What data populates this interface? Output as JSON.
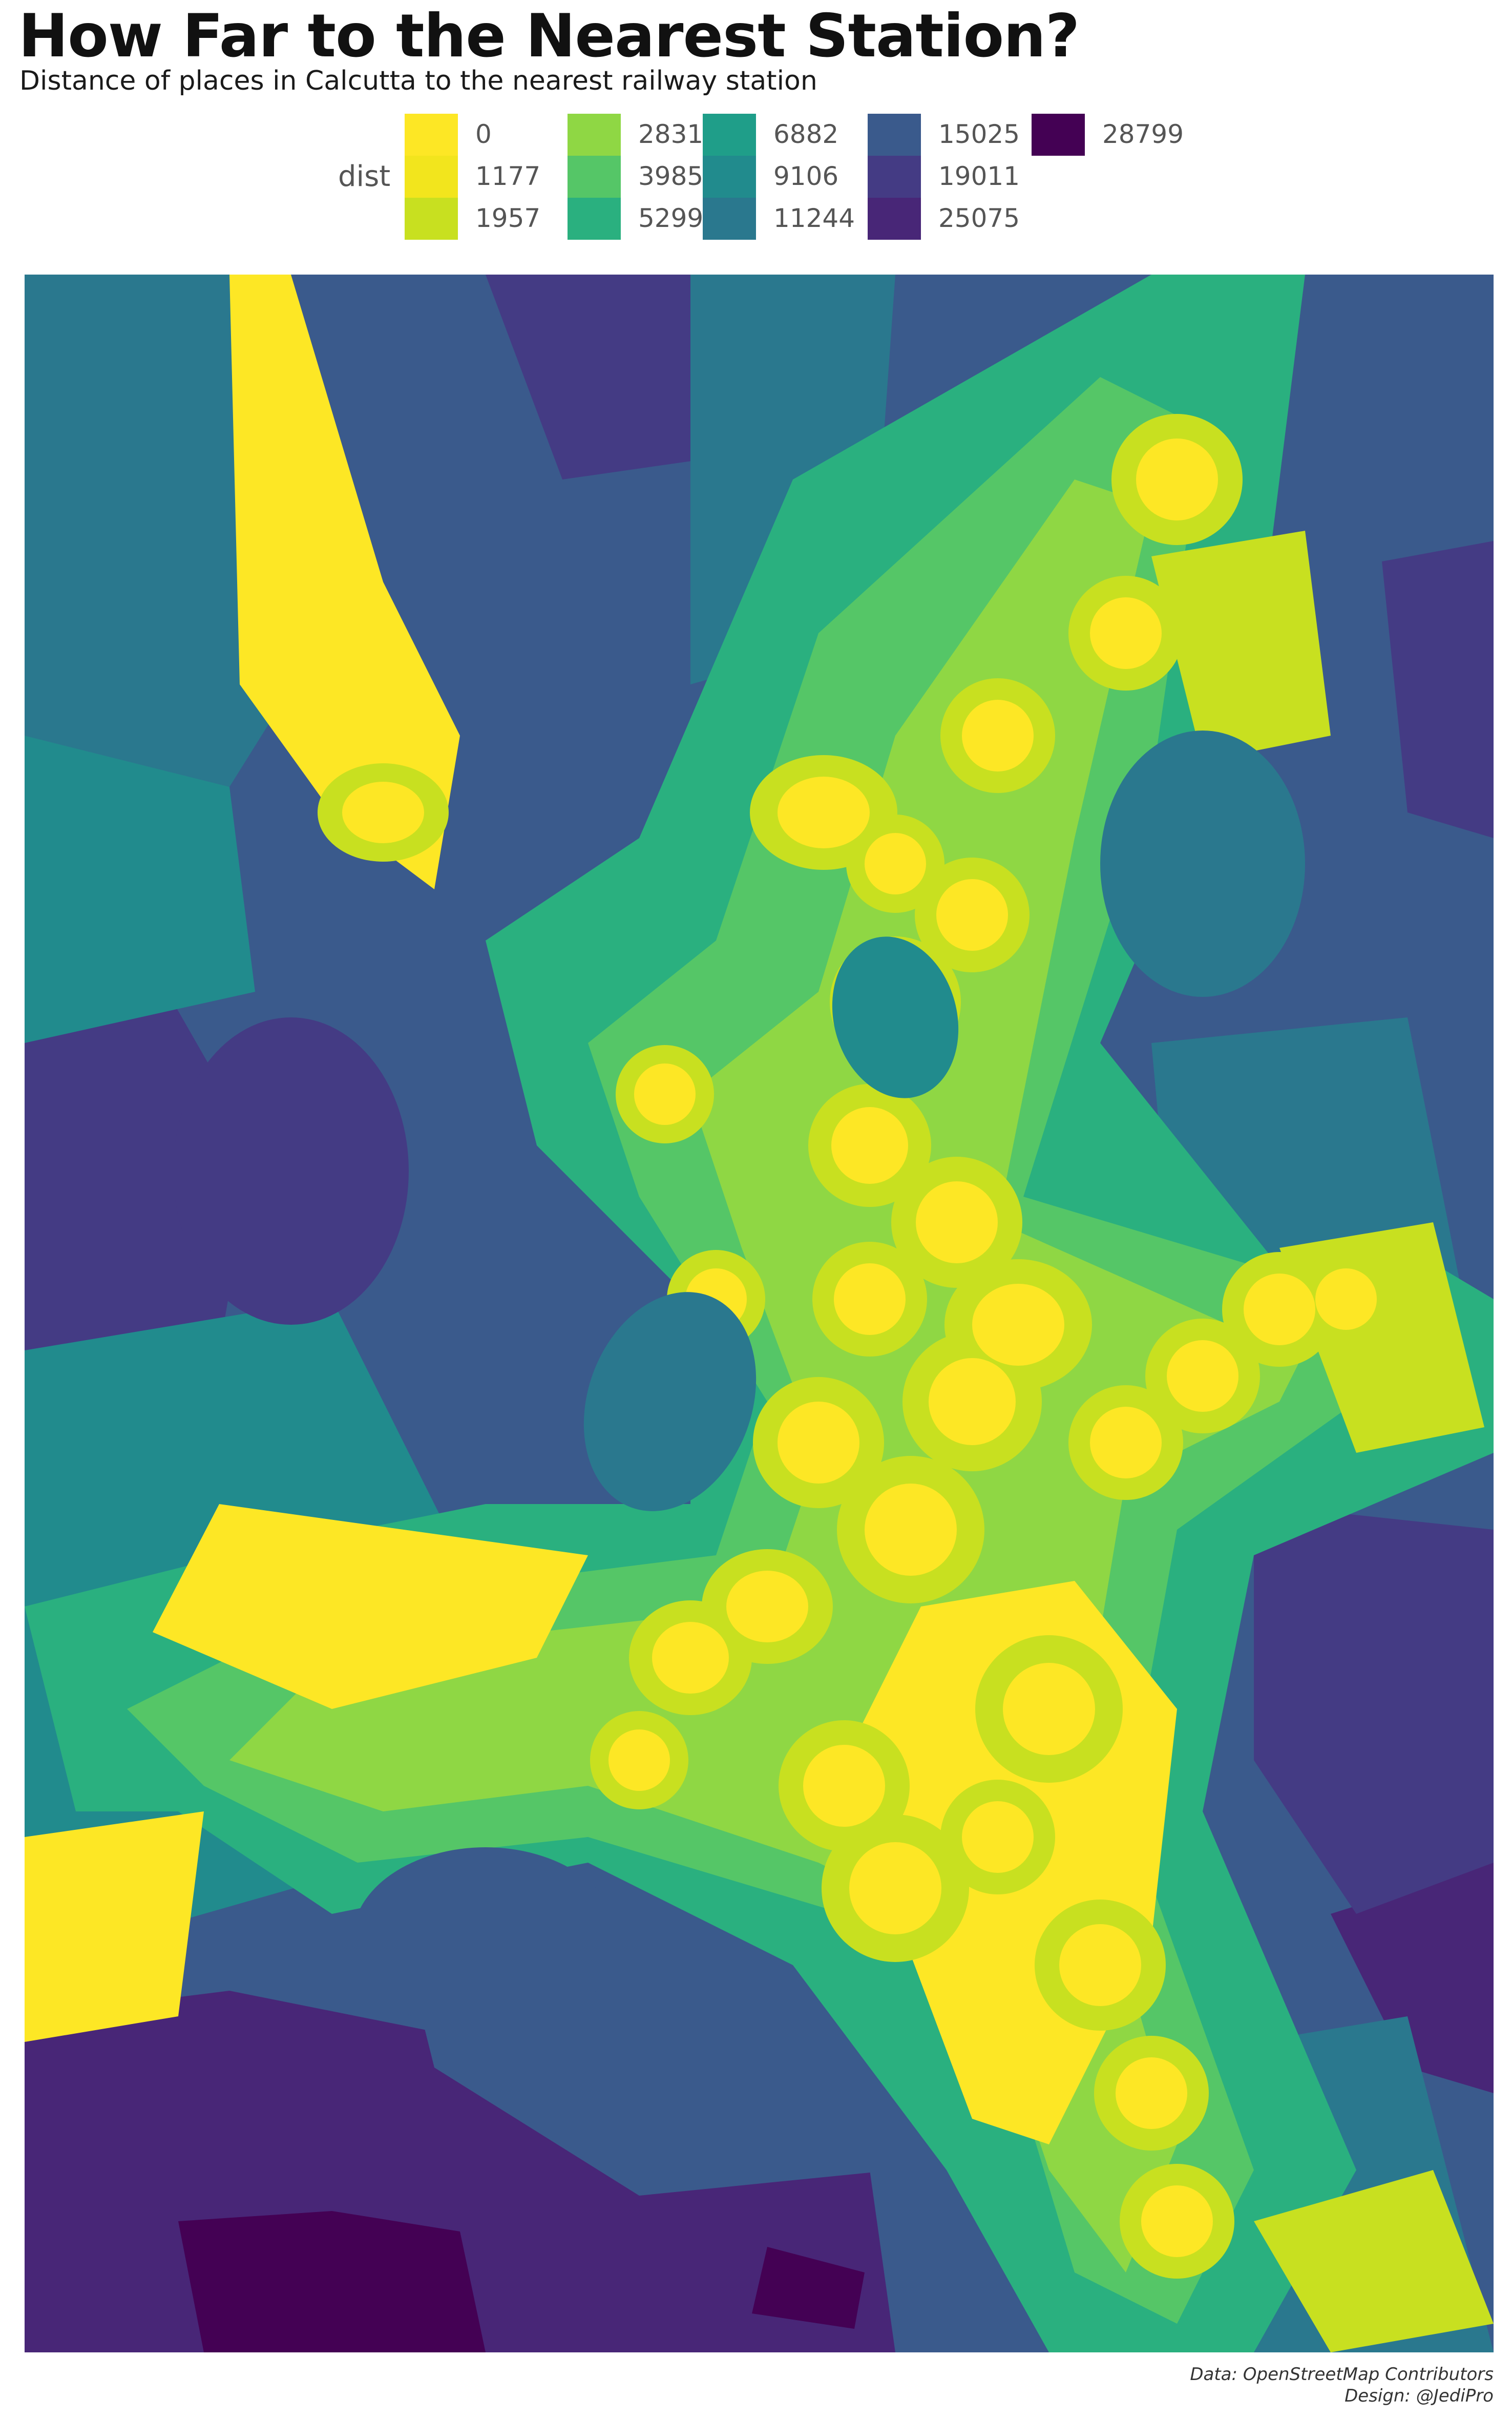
{
  "title": "How Far to the Nearest Station?",
  "subtitle": "Distance of places in Calcutta to the nearest railway station",
  "legend": {
    "title": "dist",
    "items": [
      {
        "label": "0",
        "color": "#fde725"
      },
      {
        "label": "1177",
        "color": "#f2e51d"
      },
      {
        "label": "1957",
        "color": "#c8e020"
      },
      {
        "label": "2831",
        "color": "#8fd744"
      },
      {
        "label": "3985",
        "color": "#55c667"
      },
      {
        "label": "5299",
        "color": "#2ab07f"
      },
      {
        "label": "6882",
        "color": "#1f9e89"
      },
      {
        "label": "9106",
        "color": "#218b8d"
      },
      {
        "label": "11244",
        "color": "#2a788e"
      },
      {
        "label": "15025",
        "color": "#3a5a8c"
      },
      {
        "label": "19011",
        "color": "#443b84"
      },
      {
        "label": "25075",
        "color": "#482677"
      },
      {
        "label": "28799",
        "color": "#440154"
      }
    ]
  },
  "caption": {
    "line1": "Data: OpenStreetMap Contributors",
    "line2": "Design: @JediPro"
  }
}
